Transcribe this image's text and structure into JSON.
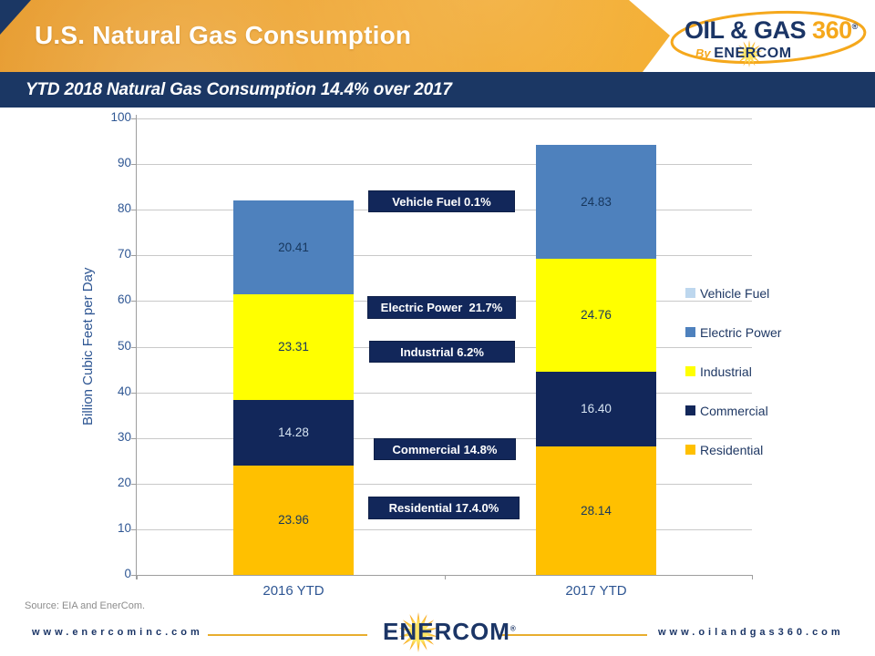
{
  "header": {
    "title": "U.S. Natural Gas Consumption",
    "logo": {
      "word1": "OIL",
      "amp": " & ",
      "word2": "GAS",
      "num": " 360",
      "reg": "®",
      "by": "By ",
      "brand": "ENERCOM"
    }
  },
  "subtitle": "YTD 2018 Natural Gas Consumption 14.4% over 2017",
  "chart_data": {
    "type": "bar",
    "stacked": true,
    "title": "",
    "xlabel": "",
    "ylabel": "Billion Cubic Feet per Day",
    "ylim": [
      0,
      100
    ],
    "ytick_step": 10,
    "grid": true,
    "legend_position": "right",
    "categories": [
      "2016 YTD",
      "2017 YTD"
    ],
    "series": [
      {
        "name": "Residential",
        "color": "#FFC000",
        "label_color": "#17375D",
        "values": [
          23.96,
          28.14
        ]
      },
      {
        "name": "Commercial",
        "color": "#12275A",
        "label_color": "#D6E4F2",
        "values": [
          14.28,
          16.4
        ]
      },
      {
        "name": "Industrial",
        "color": "#FFFF00",
        "label_color": "#17375D",
        "values": [
          23.31,
          24.76
        ]
      },
      {
        "name": "Electric Power",
        "color": "#4E81BD",
        "label_color": "#17375D",
        "values": [
          20.41,
          24.83
        ]
      }
    ],
    "legend": [
      {
        "label": "Vehicle Fuel",
        "color": "#BDD7EE"
      },
      {
        "label": "Electric Power",
        "color": "#4E81BD"
      },
      {
        "label": "Industrial",
        "color": "#FFFF00"
      },
      {
        "label": "Commercial",
        "color": "#12275A"
      },
      {
        "label": "Residential",
        "color": "#FFC000"
      }
    ],
    "annotations": [
      {
        "text": "Vehicle Fuel 0.1%"
      },
      {
        "text": "Electric Power  21.7%"
      },
      {
        "text": "Industrial 6.2%"
      },
      {
        "text": "Commercial 14.8%"
      },
      {
        "text": "Residential 17.4.0%"
      }
    ]
  },
  "source": "Source: EIA and EnerCom.",
  "footer": {
    "left_url": "www.enercominc.com",
    "brand": "ENERCOM",
    "brand_reg": "®",
    "right_url": "www.oilandgas360.com"
  }
}
